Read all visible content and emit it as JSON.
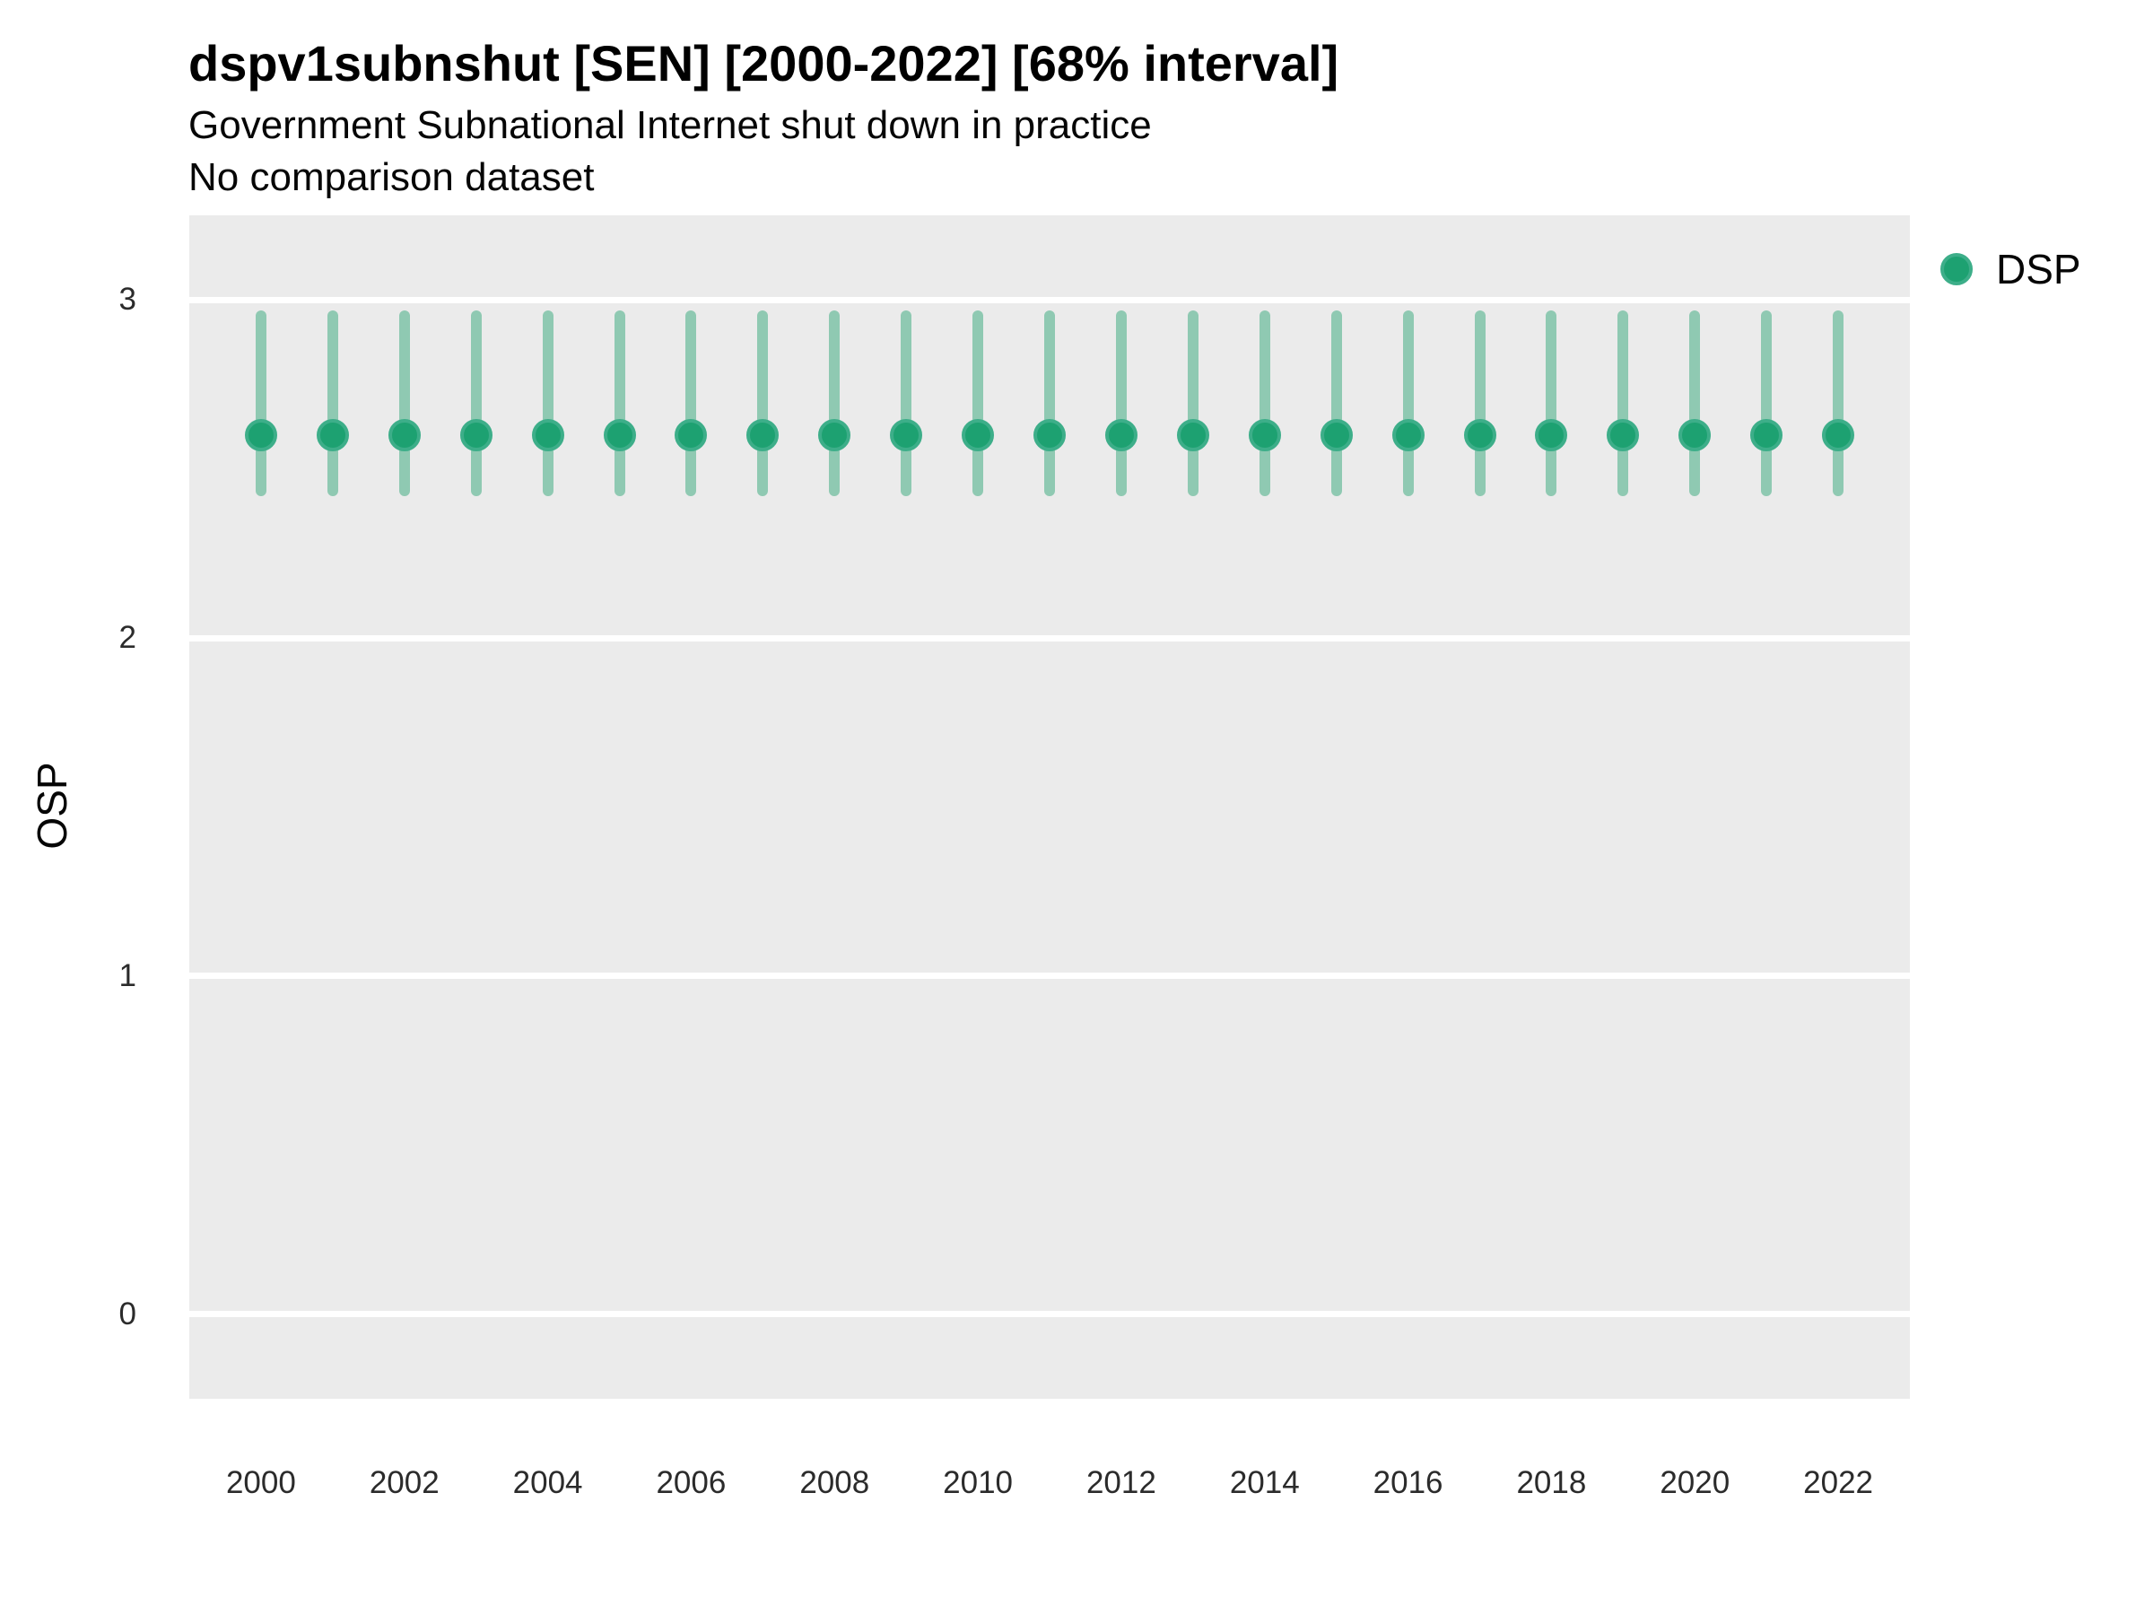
{
  "title": "dspv1subnshut [SEN] [2000-2022] [68% interval]",
  "subtitle": "Government Subnational Internet shut down in practice",
  "note": "No comparison dataset",
  "ylabel": "OSP",
  "legend": {
    "label": "DSP"
  },
  "colors": {
    "point": "#27a47b",
    "point_core": "#1da171",
    "point_rim": "#3dae89",
    "range_bar": "#8fc9b2",
    "panel_bg": "#ebebeb",
    "gridline": "#ffffff",
    "tick_text": "#2b2b2b",
    "text": "#060606"
  },
  "chart_data": {
    "type": "scatter",
    "variant": "pointrange",
    "interval": "68%",
    "title": "dspv1subnshut [SEN] [2000-2022] [68% interval]",
    "subtitle": "Government Subnational Internet shut down in practice",
    "note": "No comparison dataset",
    "xlabel": "",
    "ylabel": "OSP",
    "x": [
      2000,
      2001,
      2002,
      2003,
      2004,
      2005,
      2006,
      2007,
      2008,
      2009,
      2010,
      2011,
      2012,
      2013,
      2014,
      2015,
      2016,
      2017,
      2018,
      2019,
      2020,
      2021,
      2022
    ],
    "series": [
      {
        "name": "DSP",
        "points": [
          2.6,
          2.6,
          2.6,
          2.6,
          2.6,
          2.6,
          2.6,
          2.6,
          2.6,
          2.6,
          2.6,
          2.6,
          2.6,
          2.6,
          2.6,
          2.6,
          2.6,
          2.6,
          2.6,
          2.6,
          2.6,
          2.6,
          2.6
        ],
        "lower": [
          2.42,
          2.42,
          2.42,
          2.42,
          2.42,
          2.42,
          2.42,
          2.42,
          2.42,
          2.42,
          2.42,
          2.42,
          2.42,
          2.42,
          2.42,
          2.42,
          2.42,
          2.42,
          2.42,
          2.42,
          2.42,
          2.42,
          2.42
        ],
        "upper": [
          2.97,
          2.97,
          2.97,
          2.97,
          2.97,
          2.97,
          2.97,
          2.97,
          2.97,
          2.97,
          2.97,
          2.97,
          2.97,
          2.97,
          2.97,
          2.97,
          2.97,
          2.97,
          2.97,
          2.97,
          2.97,
          2.97,
          2.97
        ]
      }
    ],
    "xticks": [
      2000,
      2002,
      2004,
      2006,
      2008,
      2010,
      2012,
      2014,
      2016,
      2018,
      2020,
      2022
    ],
    "yticks": [
      0,
      1,
      2,
      3
    ],
    "xlim": [
      1999,
      2023
    ],
    "ylim": [
      -0.25,
      3.25
    ],
    "grid": "horizontal-major-only",
    "legend_position": "right-top",
    "panel_bg": "#ebebeb"
  }
}
